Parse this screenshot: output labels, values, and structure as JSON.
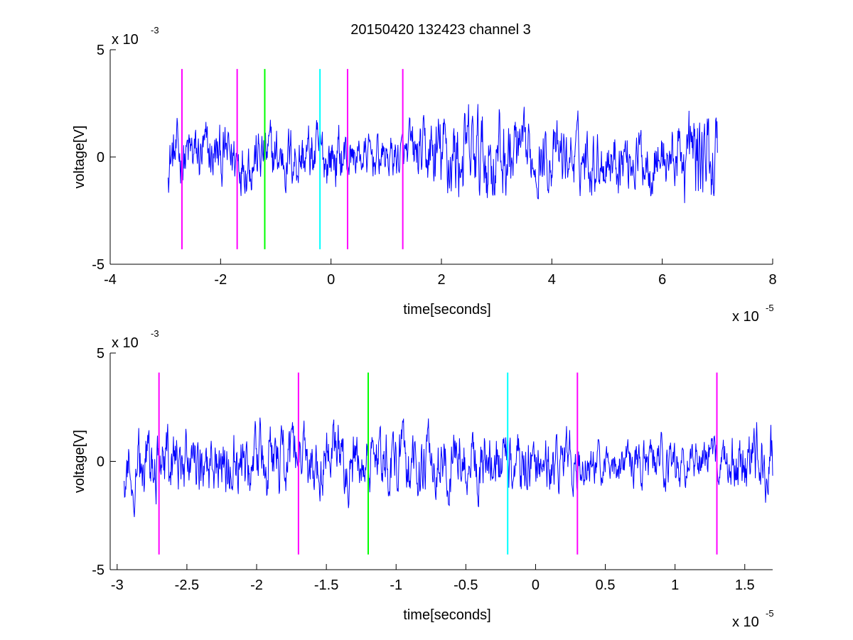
{
  "figure": {
    "title": "20150420 132423 channel 3",
    "colors": {
      "background": "#ffffff",
      "axes": "#000000",
      "signal": "#0000ff"
    }
  },
  "chart_data": [
    {
      "type": "line",
      "xlabel": "time[seconds]",
      "ylabel": "voltage[V]",
      "x_exponent_label": "x 10",
      "x_exponent": "-5",
      "y_exponent_label": "x 10",
      "y_exponent": "-3",
      "xlim": [
        -4,
        8
      ],
      "ylim": [
        -5,
        5
      ],
      "xticks": [
        -4,
        -2,
        0,
        2,
        4,
        6,
        8
      ],
      "xtick_labels": [
        "-4",
        "-2",
        "0",
        "2",
        "4",
        "6",
        "8"
      ],
      "yticks": [
        -5,
        0,
        5
      ],
      "ytick_labels": [
        "-5",
        "0",
        "5"
      ],
      "grid": false,
      "series": [
        {
          "signal_range": [
            -2.95,
            7.0
          ],
          "style": "noisy",
          "color": "#0000ff",
          "amplitude_peak": 3.8
        }
      ],
      "markers": [
        {
          "x": -2.7,
          "color": "#ff00ff",
          "ymin": -4.3,
          "ymax": 4.1
        },
        {
          "x": -1.7,
          "color": "#ff00ff",
          "ymin": -4.3,
          "ymax": 4.1
        },
        {
          "x": -1.2,
          "color": "#00ff00",
          "ymin": -4.3,
          "ymax": 4.1
        },
        {
          "x": -0.2,
          "color": "#00ffff",
          "ymin": -4.3,
          "ymax": 4.1
        },
        {
          "x": 0.3,
          "color": "#ff00ff",
          "ymin": -4.3,
          "ymax": 4.1
        },
        {
          "x": 1.3,
          "color": "#ff00ff",
          "ymin": -4.3,
          "ymax": 4.1
        }
      ]
    },
    {
      "type": "line",
      "xlabel": "time[seconds]",
      "ylabel": "voltage[V]",
      "x_exponent_label": "x 10",
      "x_exponent": "-5",
      "y_exponent_label": "x 10",
      "y_exponent": "-3",
      "xlim": [
        -3.05,
        1.7
      ],
      "ylim": [
        -5,
        5
      ],
      "xticks": [
        -3,
        -2.5,
        -2,
        -1.5,
        -1,
        -0.5,
        0,
        0.5,
        1,
        1.5
      ],
      "xtick_labels": [
        "-3",
        "-2.5",
        "-2",
        "-1.5",
        "-1",
        "-0.5",
        "0",
        "0.5",
        "1",
        "1.5"
      ],
      "yticks": [
        -5,
        0,
        5
      ],
      "ytick_labels": [
        "-5",
        "0",
        "5"
      ],
      "grid": false,
      "series": [
        {
          "signal_range": [
            -2.95,
            1.7
          ],
          "style": "noisy",
          "color": "#0000ff",
          "amplitude_peak": 3.6
        }
      ],
      "markers": [
        {
          "x": -2.7,
          "color": "#ff00ff",
          "ymin": -4.3,
          "ymax": 4.1
        },
        {
          "x": -1.7,
          "color": "#ff00ff",
          "ymin": -4.3,
          "ymax": 4.1
        },
        {
          "x": -1.2,
          "color": "#00ff00",
          "ymin": -4.3,
          "ymax": 4.1
        },
        {
          "x": -0.2,
          "color": "#00ffff",
          "ymin": -4.3,
          "ymax": 4.1
        },
        {
          "x": 0.3,
          "color": "#ff00ff",
          "ymin": -4.3,
          "ymax": 4.1
        },
        {
          "x": 1.3,
          "color": "#ff00ff",
          "ymin": -4.3,
          "ymax": 4.1
        }
      ]
    }
  ]
}
